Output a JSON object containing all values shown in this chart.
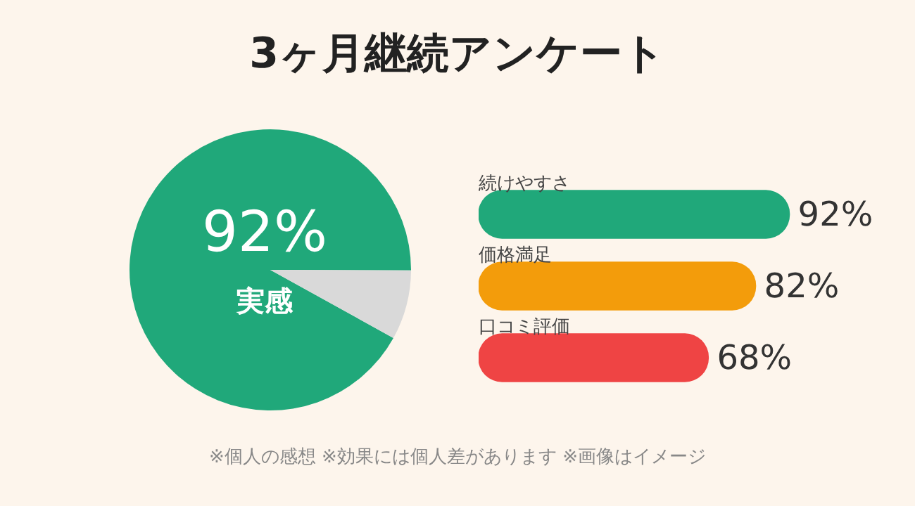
{
  "chart_data": [
    {
      "type": "pie",
      "title": "3ヶ月継続アンケート",
      "categories": [
        "実感",
        null
      ],
      "values": [
        92,
        8
      ],
      "colors": [
        "#20a87a",
        "#d9d9d9"
      ],
      "value_labels": [
        "92%",
        null
      ]
    },
    {
      "type": "bar",
      "orientation": "horizontal",
      "categories": [
        "続けやすさ",
        "価格満足",
        "口コミ評価"
      ],
      "values": [
        92,
        82,
        68
      ],
      "colors": [
        "#20a87a",
        "#f39c0b",
        "#ef4444"
      ],
      "value_labels": [
        "92%",
        "82%",
        "68%"
      ],
      "tick_labels": false,
      "legend": false,
      "annotations": [
        "※個人の感想 ※効果には個人差があります ※画像はイメージ"
      ]
    }
  ]
}
